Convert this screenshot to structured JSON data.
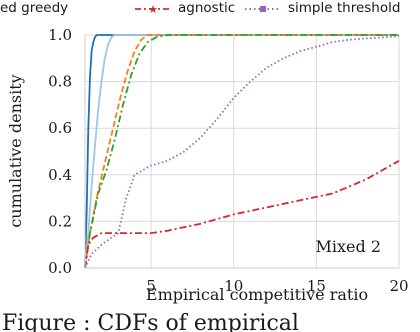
{
  "chart_data": {
    "type": "line",
    "xlabel": "Empirical competitive ratio",
    "ylabel": "cumulative density",
    "xlim": [
      1,
      20
    ],
    "ylim": [
      0,
      1
    ],
    "x_ticks": [
      5,
      10,
      15,
      20
    ],
    "y_ticks": [
      0.0,
      0.2,
      0.4,
      0.6,
      0.8,
      1.0
    ],
    "x_tick_labels": [
      "5",
      "10",
      "15",
      "20"
    ],
    "y_tick_labels": [
      "0.0",
      "0.2",
      "0.4",
      "0.6",
      "0.8",
      "1.0"
    ],
    "grid": true,
    "legend_position": "top",
    "annotation": "Mixed 2",
    "caption_fragment": "Figure : CDFs of empirical",
    "legend": [
      {
        "label": "ed greedy",
        "color": "#9ec6e6",
        "style": "solid",
        "marker": "none"
      },
      {
        "label": "agnostic",
        "color": "#d62728",
        "style": "dashdot",
        "marker": "star"
      },
      {
        "label": "simple threshold",
        "color": "#9467bd",
        "style": "dotted",
        "marker": "square"
      }
    ],
    "series": [
      {
        "color": "#1f6fb4",
        "style": "solid",
        "points": [
          [
            1.0,
            0.0
          ],
          [
            1.1,
            0.25
          ],
          [
            1.2,
            0.6
          ],
          [
            1.3,
            0.82
          ],
          [
            1.4,
            0.93
          ],
          [
            1.5,
            0.97
          ],
          [
            1.6,
            0.99
          ],
          [
            1.7,
            1.0
          ],
          [
            20,
            1.0
          ]
        ]
      },
      {
        "color": "#9ec6e6",
        "style": "solid",
        "points": [
          [
            1.0,
            0.0
          ],
          [
            1.2,
            0.15
          ],
          [
            1.4,
            0.35
          ],
          [
            1.6,
            0.52
          ],
          [
            1.8,
            0.68
          ],
          [
            2.0,
            0.8
          ],
          [
            2.2,
            0.9
          ],
          [
            2.4,
            0.96
          ],
          [
            2.6,
            0.99
          ],
          [
            2.8,
            1.0
          ],
          [
            20,
            1.0
          ]
        ]
      },
      {
        "color": "#ff7f0e",
        "style": "dashed",
        "points": [
          [
            1.0,
            0.0
          ],
          [
            1.3,
            0.15
          ],
          [
            1.7,
            0.3
          ],
          [
            2.2,
            0.45
          ],
          [
            2.7,
            0.6
          ],
          [
            3.2,
            0.75
          ],
          [
            3.6,
            0.85
          ],
          [
            4.0,
            0.93
          ],
          [
            4.4,
            0.98
          ],
          [
            4.8,
            1.0
          ],
          [
            20,
            1.0
          ]
        ]
      },
      {
        "color": "#2ca02c",
        "style": "dashdot",
        "points": [
          [
            1.0,
            0.0
          ],
          [
            1.3,
            0.15
          ],
          [
            1.8,
            0.32
          ],
          [
            2.3,
            0.42
          ],
          [
            2.8,
            0.55
          ],
          [
            3.3,
            0.7
          ],
          [
            3.8,
            0.83
          ],
          [
            4.3,
            0.92
          ],
          [
            4.8,
            0.97
          ],
          [
            5.3,
            0.99
          ],
          [
            6.0,
            1.0
          ],
          [
            20,
            1.0
          ]
        ]
      },
      {
        "name": "agnostic",
        "color": "#d62728",
        "style": "dashdot",
        "points": [
          [
            1.0,
            0.0
          ],
          [
            1.2,
            0.1
          ],
          [
            1.5,
            0.13
          ],
          [
            2.0,
            0.15
          ],
          [
            3.0,
            0.15
          ],
          [
            5.0,
            0.15
          ],
          [
            6.0,
            0.16
          ],
          [
            8.0,
            0.19
          ],
          [
            10.0,
            0.23
          ],
          [
            12.0,
            0.26
          ],
          [
            14.0,
            0.29
          ],
          [
            16.0,
            0.32
          ],
          [
            18.0,
            0.38
          ],
          [
            20.0,
            0.46
          ]
        ]
      },
      {
        "name": "simple threshold",
        "color": "#9467bd",
        "style": "dotted",
        "points": [
          [
            1.0,
            0.0
          ],
          [
            1.4,
            0.06
          ],
          [
            2.0,
            0.1
          ],
          [
            3.0,
            0.15
          ],
          [
            3.5,
            0.3
          ],
          [
            4.0,
            0.4
          ],
          [
            5.0,
            0.44
          ],
          [
            6.0,
            0.46
          ],
          [
            7.0,
            0.5
          ],
          [
            8.0,
            0.56
          ],
          [
            9.0,
            0.64
          ],
          [
            10.0,
            0.73
          ],
          [
            11.0,
            0.8
          ],
          [
            12.0,
            0.86
          ],
          [
            13.0,
            0.9
          ],
          [
            14.0,
            0.93
          ],
          [
            15.0,
            0.95
          ],
          [
            16.0,
            0.97
          ],
          [
            17.0,
            0.98
          ],
          [
            18.0,
            0.985
          ],
          [
            19.0,
            0.99
          ],
          [
            20.0,
            0.995
          ]
        ]
      }
    ]
  }
}
